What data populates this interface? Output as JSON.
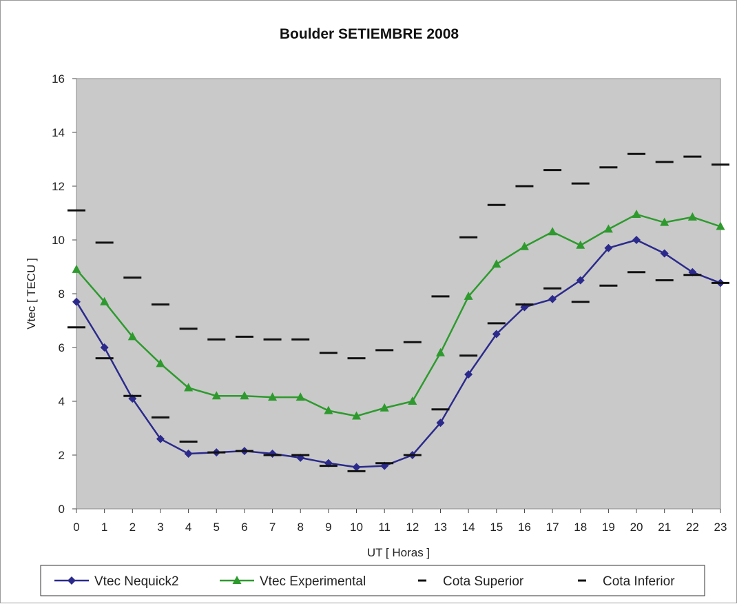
{
  "chart_data": {
    "type": "line",
    "title": "Boulder SETIEMBRE 2008",
    "xlabel": "UT [ Horas ]",
    "ylabel": "Vtec [ TECU ]",
    "x": [
      0,
      1,
      2,
      3,
      4,
      5,
      6,
      7,
      8,
      9,
      10,
      11,
      12,
      13,
      14,
      15,
      16,
      17,
      18,
      19,
      20,
      21,
      22,
      23
    ],
    "ylim": [
      0,
      16
    ],
    "yticks": [
      0,
      2,
      4,
      6,
      8,
      10,
      12,
      14,
      16
    ],
    "grid": false,
    "legend_position": "bottom",
    "series": [
      {
        "name": "Vtec Nequick2",
        "marker": "diamond",
        "color": "#2b2a8c",
        "values": [
          7.7,
          6.0,
          4.1,
          2.6,
          2.05,
          2.1,
          2.15,
          2.05,
          1.9,
          1.7,
          1.55,
          1.6,
          2.0,
          3.2,
          5.0,
          6.5,
          7.5,
          7.8,
          8.5,
          9.7,
          10.0,
          9.5,
          8.8,
          8.4
        ]
      },
      {
        "name": "Vtec Experimental",
        "marker": "triangle",
        "color": "#2e9a2e",
        "values": [
          8.9,
          7.7,
          6.4,
          5.4,
          4.5,
          4.2,
          4.2,
          4.15,
          4.15,
          3.65,
          3.45,
          3.75,
          4.0,
          5.8,
          7.9,
          9.1,
          9.75,
          10.3,
          9.8,
          10.4,
          10.95,
          10.65,
          10.85,
          10.5
        ]
      },
      {
        "name": "Cota Superior",
        "marker": "dash",
        "color": "#111111",
        "values": [
          11.1,
          9.9,
          8.6,
          7.6,
          6.7,
          6.3,
          6.4,
          6.3,
          6.3,
          5.8,
          5.6,
          5.9,
          6.2,
          7.9,
          10.1,
          11.3,
          12.0,
          12.6,
          12.1,
          12.7,
          13.2,
          12.9,
          13.1,
          12.8
        ]
      },
      {
        "name": "Cota Inferior",
        "marker": "dash",
        "color": "#111111",
        "values": [
          6.75,
          5.6,
          4.2,
          3.4,
          2.5,
          2.1,
          2.15,
          2.0,
          2.0,
          1.6,
          1.4,
          1.7,
          2.0,
          3.7,
          5.7,
          6.9,
          7.6,
          8.2,
          7.7,
          8.3,
          8.8,
          8.5,
          8.7,
          8.4
        ]
      }
    ]
  }
}
